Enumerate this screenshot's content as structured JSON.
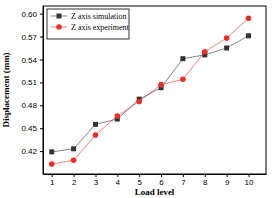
{
  "chart_data": {
    "type": "line",
    "x_label": "Load level",
    "y_label": "Displacement (mm)",
    "x": [
      1,
      2,
      3,
      4,
      5,
      6,
      7,
      8,
      9,
      10
    ],
    "series": [
      {
        "name": "Z axis simulation",
        "color": "#333333",
        "marker": "square",
        "line_style": "solid",
        "values": [
          0.419,
          0.423,
          0.455,
          0.462,
          0.488,
          0.503,
          0.541,
          0.546,
          0.555,
          0.571
        ]
      },
      {
        "name": "Z axis experiment",
        "color": "#e8302a",
        "marker": "circle",
        "line_style": "solid",
        "values": [
          0.403,
          0.408,
          0.441,
          0.466,
          0.485,
          0.507,
          0.514,
          0.55,
          0.568,
          0.594
        ]
      }
    ],
    "xlim": [
      0.6,
      10.8
    ],
    "xticks": [
      1,
      2,
      3,
      4,
      5,
      6,
      7,
      8,
      9,
      10
    ],
    "ylim": [
      0.39,
      0.61
    ],
    "yticks": [
      0.42,
      0.45,
      0.48,
      0.51,
      0.54,
      0.57,
      {
        "value": 0.6,
        "label": "0.60"
      }
    ],
    "legend": "upper left",
    "grid": false
  }
}
